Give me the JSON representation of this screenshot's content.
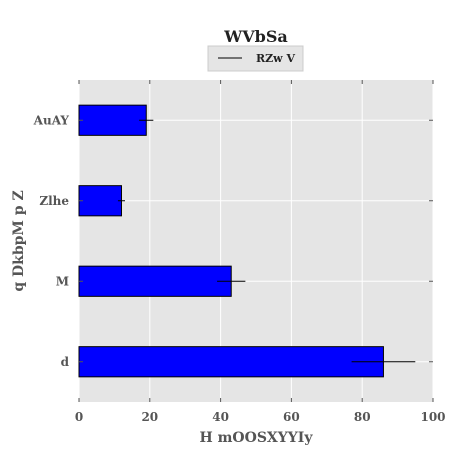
{
  "chart_data": {
    "type": "bar",
    "orientation": "horizontal",
    "title": "WVbSa",
    "xlabel": "H mOOSXYYIy",
    "ylabel": "q  DkbpM p  Z",
    "categories": [
      "d",
      "M",
      "Zlhe",
      "AuAY"
    ],
    "series": [
      {
        "name": "RZw V",
        "values": [
          86,
          43,
          12,
          19
        ],
        "errors": [
          9,
          4,
          1,
          2
        ]
      }
    ],
    "xlim": [
      0,
      100
    ],
    "xticks": [
      0,
      20,
      40,
      60,
      80,
      100
    ],
    "grid": true,
    "legend_position": "top-center",
    "colors": {
      "bar": "#0000ff",
      "bar_edge": "#000000",
      "plot_background": "#e5e5e5",
      "grid": "#ffffff",
      "errorbar": "#000000"
    }
  }
}
